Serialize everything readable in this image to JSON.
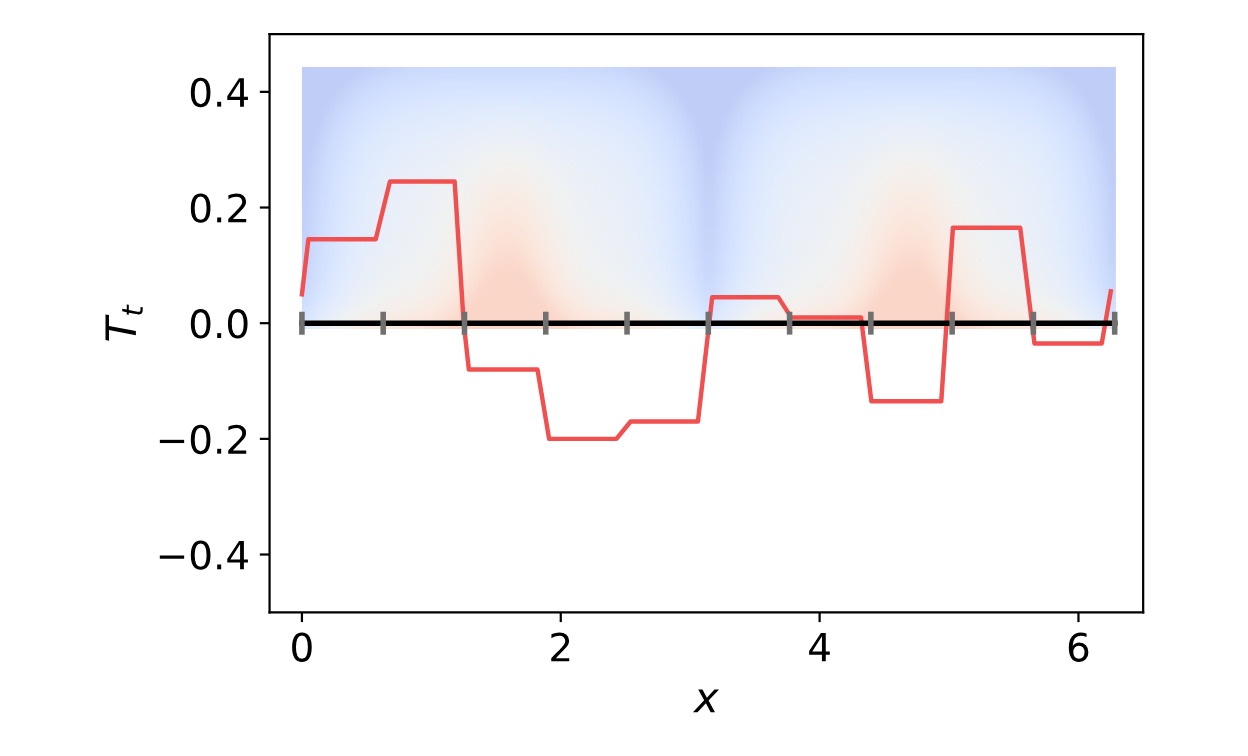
{
  "chart_data": {
    "type": "line",
    "xlabel": "x",
    "ylabel": "T$_{t}$",
    "xlim": [
      -0.25,
      6.5
    ],
    "ylim": [
      -0.5,
      0.5
    ],
    "xticks": [
      0,
      2,
      4,
      6
    ],
    "yticks": [
      {
        "value": -0.4,
        "label": "−0.4"
      },
      {
        "value": -0.2,
        "label": "−0.2"
      },
      {
        "value": 0,
        "label": "0.0"
      },
      {
        "value": 0.2,
        "label": "0.2"
      },
      {
        "value": 0.4,
        "label": "0.4"
      }
    ],
    "grid": false,
    "legend": false,
    "series": [
      {
        "color": "#f05050",
        "x": [
          0,
          0.05,
          0.57,
          0.68,
          1.18,
          1.25,
          1.29,
          1.82,
          1.91,
          2.43,
          2.54,
          3.06,
          3.17,
          3.68,
          3.78,
          4.32,
          4.4,
          4.94,
          5.03,
          5.55,
          5.66,
          6.18,
          6.25
        ],
        "values": [
          0.05,
          0.145,
          0.145,
          0.245,
          0.245,
          0.0,
          -0.08,
          -0.08,
          -0.2,
          -0.2,
          -0.17,
          -0.17,
          0.045,
          0.045,
          0.01,
          0.01,
          -0.135,
          -0.135,
          0.165,
          0.165,
          -0.035,
          -0.035,
          0.055
        ]
      },
      {
        "color": "#000000",
        "x": [
          0,
          6.28
        ],
        "values": [
          0,
          0
        ]
      }
    ]
  }
}
